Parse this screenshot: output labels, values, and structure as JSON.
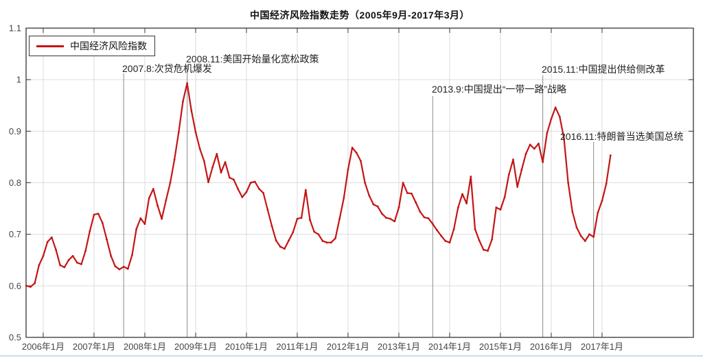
{
  "chart_data": {
    "type": "line",
    "title": "中国经济风险指数走势（2005年9月-2017年3月）",
    "xlabel": "",
    "ylabel": "",
    "ylim": [
      0.5,
      1.1
    ],
    "grid": true,
    "legend_position": "top-left",
    "line_color": "#c41414",
    "y_ticks": [
      "1.1",
      "1",
      "0.9",
      "0.8",
      "0.7",
      "0.6",
      "0.5"
    ],
    "x_ticks": [
      "2006年1月",
      "2007年1月",
      "2008年1月",
      "2009年1月",
      "2010年1月",
      "2011年1月",
      "2012年1月",
      "2013年1月",
      "2014年1月",
      "2015年1月",
      "2016年1月",
      "2017年1月"
    ],
    "annotations": [
      {
        "date": "2007-08",
        "label": "2007.8:次贷危机爆发"
      },
      {
        "date": "2008-11",
        "label": "2008.11:美国开始量化宽松政策"
      },
      {
        "date": "2013-09",
        "label": "2013.9:中国提出“一带一路”战略"
      },
      {
        "date": "2015-11",
        "label": "2015.11:中国提出供给侧改革"
      },
      {
        "date": "2016-11",
        "label": "2016.11:特朗普当选美国总统"
      }
    ],
    "series": [
      {
        "name": "中国经济风险指数",
        "frequency": "monthly",
        "start": "2005-09",
        "end": "2017-03",
        "values": [
          0.6,
          0.598,
          0.605,
          0.64,
          0.658,
          0.685,
          0.694,
          0.67,
          0.64,
          0.636,
          0.65,
          0.658,
          0.645,
          0.642,
          0.668,
          0.706,
          0.738,
          0.74,
          0.722,
          0.69,
          0.658,
          0.638,
          0.632,
          0.637,
          0.633,
          0.66,
          0.71,
          0.731,
          0.72,
          0.77,
          0.788,
          0.756,
          0.73,
          0.766,
          0.8,
          0.845,
          0.898,
          0.958,
          0.993,
          0.94,
          0.898,
          0.866,
          0.842,
          0.801,
          0.83,
          0.856,
          0.82,
          0.84,
          0.81,
          0.806,
          0.788,
          0.772,
          0.782,
          0.8,
          0.802,
          0.788,
          0.78,
          0.748,
          0.716,
          0.688,
          0.676,
          0.672,
          0.688,
          0.704,
          0.73,
          0.732,
          0.786,
          0.728,
          0.705,
          0.7,
          0.687,
          0.684,
          0.684,
          0.692,
          0.73,
          0.77,
          0.826,
          0.868,
          0.858,
          0.842,
          0.8,
          0.775,
          0.758,
          0.754,
          0.74,
          0.732,
          0.73,
          0.725,
          0.752,
          0.8,
          0.78,
          0.779,
          0.762,
          0.744,
          0.733,
          0.731,
          0.72,
          0.708,
          0.697,
          0.687,
          0.684,
          0.71,
          0.752,
          0.778,
          0.76,
          0.812,
          0.71,
          0.688,
          0.67,
          0.668,
          0.69,
          0.752,
          0.748,
          0.772,
          0.816,
          0.845,
          0.792,
          0.825,
          0.856,
          0.874,
          0.866,
          0.876,
          0.84,
          0.896,
          0.924,
          0.946,
          0.928,
          0.886,
          0.8,
          0.744,
          0.713,
          0.697,
          0.687,
          0.7,
          0.695,
          0.742,
          0.765,
          0.798,
          0.853
        ]
      }
    ]
  }
}
